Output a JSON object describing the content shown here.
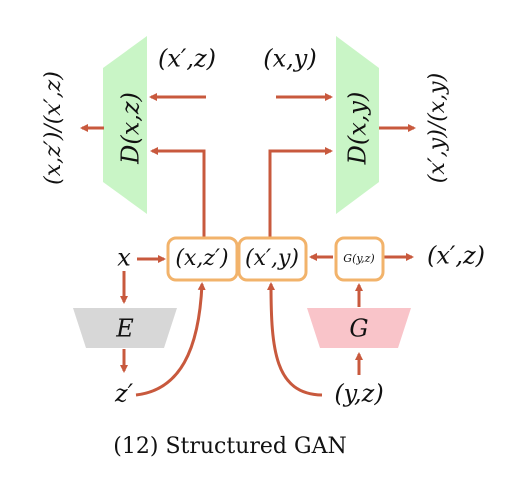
{
  "caption": "(12) Structured GAN",
  "colors": {
    "arrow": "#c8593d",
    "box_stroke": "#f2b36b",
    "discriminator": "#c9f5c6",
    "encoder": "#d7d7d7",
    "generator": "#f9c4c9"
  },
  "nodes": {
    "d_left_label": "D(x,z)",
    "d_right_label": "D(x,y)",
    "encoder_label": "E",
    "generator_label": "G",
    "box_xz": "(x,z′)",
    "box_xy": "(x′,y)",
    "box_gyz": "G(y,z)"
  },
  "texts": {
    "input_left": "(x′,z)",
    "input_right": "(x,y)",
    "output_left": "(x,z′)/(x′,z)",
    "output_right": "(x′,y)/(x,y)",
    "x": "x",
    "z_prime": "z′",
    "yz": "(y,z)",
    "xprime_z_out": "(x′,z)"
  }
}
